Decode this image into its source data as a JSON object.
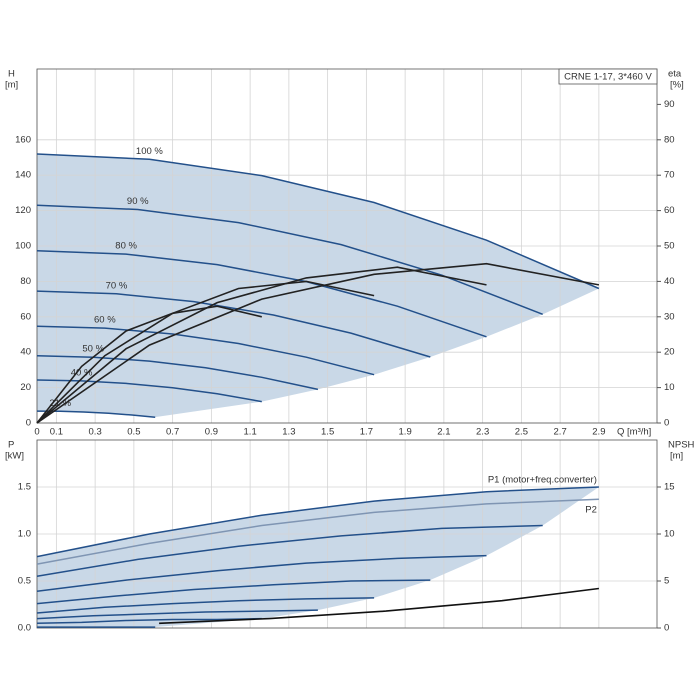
{
  "chart_data": [
    {
      "type": "line",
      "title": "CRNE 1-17, 3*460 V",
      "y_label": "H",
      "y_unit": "[m]",
      "y2_label": "eta",
      "y2_unit": "[%]",
      "x_label": "Q [m³/h]",
      "xlim": [
        0,
        3.2
      ],
      "xticks": [
        0,
        0.1,
        0.3,
        0.5,
        0.7,
        0.9,
        1.1,
        1.3,
        1.5,
        1.7,
        1.9,
        2.1,
        2.3,
        2.5,
        2.7,
        2.9
      ],
      "ylim": [
        0,
        200
      ],
      "yticks": [
        0,
        20,
        40,
        60,
        80,
        100,
        120,
        140,
        160
      ],
      "y2lim": [
        0,
        100
      ],
      "y2ticks": [
        0,
        10,
        20,
        30,
        40,
        50,
        60,
        70,
        80,
        90
      ],
      "grid": true,
      "envelope_color": "#c9d8e7",
      "series": [
        {
          "name": "100 %",
          "color": "#23508a",
          "envelope": true,
          "x": [
            0,
            0.58,
            1.16,
            1.74,
            2.32,
            2.9
          ],
          "values": [
            152,
            149,
            139.8,
            124.6,
            103.3,
            76
          ]
        },
        {
          "name": "90 %",
          "color": "#23508a",
          "envelope": true,
          "x": [
            0,
            0.52,
            1.04,
            1.57,
            2.09,
            2.61
          ],
          "values": [
            123,
            120.6,
            113.2,
            100.8,
            83.5,
            61.4
          ]
        },
        {
          "name": "80 %",
          "color": "#23508a",
          "envelope": true,
          "x": [
            0,
            0.46,
            0.93,
            1.39,
            1.86,
            2.32
          ],
          "values": [
            97.3,
            95.4,
            89.5,
            79.9,
            66,
            48.7
          ]
        },
        {
          "name": "70 %",
          "color": "#23508a",
          "envelope": true,
          "x": [
            0,
            0.41,
            0.81,
            1.22,
            1.62,
            2.03
          ],
          "values": [
            74.5,
            73,
            68.6,
            61,
            50.8,
            37.3
          ]
        },
        {
          "name": "60 %",
          "color": "#23508a",
          "envelope": true,
          "x": [
            0,
            0.35,
            0.7,
            1.04,
            1.39,
            1.74
          ],
          "values": [
            54.7,
            53.6,
            50.3,
            44.9,
            37.2,
            27.3
          ]
        },
        {
          "name": "50 %",
          "color": "#23508a",
          "envelope": true,
          "x": [
            0,
            0.29,
            0.58,
            0.87,
            1.16,
            1.45
          ],
          "values": [
            38,
            37.2,
            35,
            31.2,
            25.8,
            19
          ]
        },
        {
          "name": "40 %",
          "color": "#23508a",
          "envelope": true,
          "x": [
            0,
            0.23,
            0.46,
            0.7,
            0.93,
            1.16
          ],
          "values": [
            24.3,
            23.8,
            22.4,
            19.9,
            16.5,
            12.1
          ]
        },
        {
          "name": "21 %",
          "color": "#23508a",
          "envelope": true,
          "x": [
            0,
            0.12,
            0.24,
            0.37,
            0.49,
            0.61
          ],
          "values": [
            6.7,
            6.6,
            6.2,
            5.5,
            4.5,
            3.3
          ]
        },
        {
          "color": "#222222",
          "axis": "y2",
          "x": [
            0,
            0.58,
            1.16,
            1.74,
            2.32,
            2.9
          ],
          "values": [
            0,
            22,
            35,
            42,
            45,
            39
          ]
        },
        {
          "color": "#222222",
          "axis": "y2",
          "x": [
            0,
            0.46,
            0.93,
            1.39,
            1.86,
            2.32
          ],
          "values": [
            0,
            21,
            34,
            41,
            44,
            39
          ]
        },
        {
          "color": "#222222",
          "axis": "y2",
          "x": [
            0,
            0.35,
            0.7,
            1.04,
            1.39,
            1.74
          ],
          "values": [
            0,
            19,
            31,
            38,
            40,
            36
          ]
        },
        {
          "color": "#222222",
          "axis": "y2",
          "x": [
            0,
            0.23,
            0.46,
            0.7,
            0.93,
            1.16
          ],
          "values": [
            0,
            16,
            26,
            31,
            33,
            30
          ]
        }
      ]
    },
    {
      "type": "line",
      "y_label": "P",
      "y_unit": "[kW]",
      "y2_label": "NPSH",
      "y2_unit": "[m]",
      "xlim": [
        0,
        3.2
      ],
      "xticks": [
        0,
        0.1,
        0.3,
        0.5,
        0.7,
        0.9,
        1.1,
        1.3,
        1.5,
        1.7,
        1.9,
        2.1,
        2.3,
        2.5,
        2.7,
        2.9
      ],
      "ylim": [
        0,
        2
      ],
      "yticks": [
        {
          "value": 0,
          "label": "0.0"
        },
        0.5,
        {
          "value": 1,
          "label": "1.0"
        },
        1.5
      ],
      "y2lim": [
        0,
        20
      ],
      "y2ticks": [
        0,
        5,
        10,
        15
      ],
      "grid": true,
      "envelope_color": "#c9d8e7",
      "series": [
        {
          "name": "P1 (motor+freq.converter)",
          "color": "#23508a",
          "envelope": true,
          "x": [
            0,
            0.58,
            1.16,
            1.74,
            2.32,
            2.9
          ],
          "values": [
            0.76,
            1,
            1.2,
            1.35,
            1.45,
            1.5
          ]
        },
        {
          "color": "#23508a",
          "envelope": true,
          "x": [
            0,
            0.52,
            1.04,
            1.57,
            2.09,
            2.61
          ],
          "values": [
            0.55,
            0.73,
            0.87,
            0.98,
            1.06,
            1.09
          ]
        },
        {
          "color": "#23508a",
          "envelope": true,
          "x": [
            0,
            0.46,
            0.93,
            1.39,
            1.86,
            2.32
          ],
          "values": [
            0.39,
            0.51,
            0.61,
            0.69,
            0.74,
            0.77
          ]
        },
        {
          "color": "#23508a",
          "envelope": true,
          "x": [
            0,
            0.41,
            0.81,
            1.22,
            1.62,
            2.03
          ],
          "values": [
            0.26,
            0.34,
            0.41,
            0.46,
            0.5,
            0.51
          ]
        },
        {
          "color": "#23508a",
          "envelope": true,
          "x": [
            0,
            0.35,
            0.7,
            1.04,
            1.39,
            1.74
          ],
          "values": [
            0.16,
            0.22,
            0.26,
            0.29,
            0.31,
            0.32
          ]
        },
        {
          "color": "#23508a",
          "envelope": true,
          "x": [
            0,
            0.29,
            0.58,
            0.87,
            1.16,
            1.45
          ],
          "values": [
            0.1,
            0.13,
            0.15,
            0.17,
            0.18,
            0.19
          ]
        },
        {
          "color": "#23508a",
          "envelope": true,
          "x": [
            0,
            0.23,
            0.46,
            0.7,
            0.93,
            1.16
          ],
          "values": [
            0.05,
            0.06,
            0.08,
            0.09,
            0.09,
            0.1
          ]
        },
        {
          "color": "#23508a",
          "envelope": true,
          "x": [
            0,
            0.12,
            0.24,
            0.37,
            0.49,
            0.61
          ],
          "values": [
            0.01,
            0.01,
            0.01,
            0.01,
            0.01,
            0.01
          ]
        },
        {
          "name": "P2",
          "color": "#7f95b3",
          "x": [
            0,
            0.58,
            1.16,
            1.74,
            2.32,
            2.9
          ],
          "values": [
            0.68,
            0.9,
            1.09,
            1.23,
            1.32,
            1.37
          ]
        },
        {
          "color": "#111111",
          "axis": "y2",
          "x": [
            0.63,
            1.2,
            1.8,
            2.4,
            2.9
          ],
          "values": [
            0.5,
            1,
            1.8,
            2.9,
            4.2
          ]
        }
      ]
    }
  ]
}
